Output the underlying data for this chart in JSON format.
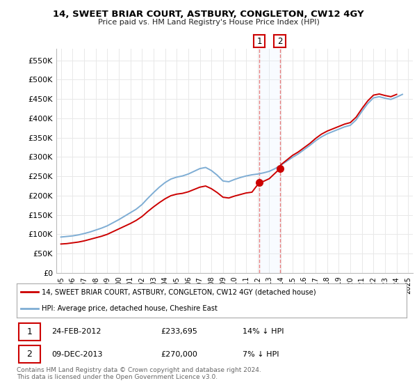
{
  "title": "14, SWEET BRIAR COURT, ASTBURY, CONGLETON, CW12 4GY",
  "subtitle": "Price paid vs. HM Land Registry's House Price Index (HPI)",
  "ylabel_ticks": [
    "£0",
    "£50K",
    "£100K",
    "£150K",
    "£200K",
    "£250K",
    "£300K",
    "£350K",
    "£400K",
    "£450K",
    "£500K",
    "£550K"
  ],
  "ytick_values": [
    0,
    50000,
    100000,
    150000,
    200000,
    250000,
    300000,
    350000,
    400000,
    450000,
    500000,
    550000
  ],
  "ylim": [
    0,
    580000
  ],
  "xlim_min": 1994.6,
  "xlim_max": 2025.4,
  "hpi_color": "#7eadd4",
  "price_color": "#cc0000",
  "marker_color": "#cc0000",
  "legend_label_price": "14, SWEET BRIAR COURT, ASTBURY, CONGLETON, CW12 4GY (detached house)",
  "legend_label_hpi": "HPI: Average price, detached house, Cheshire East",
  "transaction1_date": "24-FEB-2012",
  "transaction1_price": "£233,695",
  "transaction1_hpi": "14% ↓ HPI",
  "transaction2_date": "09-DEC-2013",
  "transaction2_price": "£270,000",
  "transaction2_hpi": "7% ↓ HPI",
  "t1_x": 2012.13,
  "t1_y": 233695,
  "t2_x": 2013.92,
  "t2_y": 270000,
  "footer": "Contains HM Land Registry data © Crown copyright and database right 2024.\nThis data is licensed under the Open Government Licence v3.0.",
  "background_color": "#ffffff",
  "grid_color": "#e8e8e8",
  "vline_color": "#e88080",
  "shade_color": "#ddeeff",
  "years_hpi": [
    1995.0,
    1995.5,
    1996.0,
    1996.5,
    1997.0,
    1997.5,
    1998.0,
    1998.5,
    1999.0,
    1999.5,
    2000.0,
    2000.5,
    2001.0,
    2001.5,
    2002.0,
    2002.5,
    2003.0,
    2003.5,
    2004.0,
    2004.5,
    2005.0,
    2005.5,
    2006.0,
    2006.5,
    2007.0,
    2007.5,
    2008.0,
    2008.5,
    2009.0,
    2009.5,
    2010.0,
    2010.5,
    2011.0,
    2011.5,
    2012.0,
    2012.5,
    2013.0,
    2013.5,
    2014.0,
    2014.5,
    2015.0,
    2015.5,
    2016.0,
    2016.5,
    2017.0,
    2017.5,
    2018.0,
    2018.5,
    2019.0,
    2019.5,
    2020.0,
    2020.5,
    2021.0,
    2021.5,
    2022.0,
    2022.5,
    2023.0,
    2023.5,
    2024.0,
    2024.5
  ],
  "hpi_values": [
    93000,
    94500,
    96000,
    98500,
    102000,
    106000,
    111000,
    116000,
    122000,
    130000,
    138000,
    147000,
    156000,
    165000,
    177000,
    193000,
    208000,
    222000,
    234000,
    243000,
    248000,
    251000,
    256000,
    263000,
    270000,
    273000,
    265000,
    253000,
    238000,
    236000,
    242000,
    247000,
    251000,
    254000,
    256000,
    259000,
    263000,
    270000,
    279000,
    289000,
    299000,
    308000,
    319000,
    330000,
    342000,
    352000,
    360000,
    366000,
    372000,
    378000,
    382000,
    396000,
    418000,
    438000,
    453000,
    456000,
    452000,
    449000,
    455000,
    462000
  ],
  "years_price": [
    1995.0,
    1995.5,
    1996.0,
    1996.5,
    1997.0,
    1997.5,
    1998.0,
    1998.5,
    1999.0,
    1999.5,
    2000.0,
    2000.5,
    2001.0,
    2001.5,
    2002.0,
    2002.5,
    2003.0,
    2003.5,
    2004.0,
    2004.5,
    2005.0,
    2005.5,
    2006.0,
    2006.5,
    2007.0,
    2007.5,
    2008.0,
    2008.5,
    2009.0,
    2009.5,
    2010.0,
    2010.5,
    2011.0,
    2011.5,
    2012.13,
    2012.5,
    2013.0,
    2013.92,
    2014.0,
    2014.5,
    2015.0,
    2015.5,
    2016.0,
    2016.5,
    2017.0,
    2017.5,
    2018.0,
    2018.5,
    2019.0,
    2019.5,
    2020.0,
    2020.5,
    2021.0,
    2021.5,
    2022.0,
    2022.5,
    2023.0,
    2023.5,
    2024.0
  ],
  "price_values": [
    75000,
    76000,
    78000,
    80000,
    83000,
    87000,
    91000,
    95000,
    100000,
    107000,
    114000,
    121000,
    128000,
    136000,
    146000,
    159000,
    171000,
    182000,
    192000,
    200000,
    204000,
    206000,
    210000,
    216000,
    222000,
    225000,
    218000,
    208000,
    196000,
    194000,
    199000,
    203000,
    207000,
    209000,
    233695,
    237000,
    244000,
    270000,
    280000,
    292000,
    304000,
    313000,
    324000,
    335000,
    348000,
    359000,
    367000,
    373000,
    379000,
    385000,
    389000,
    403000,
    425000,
    445000,
    460000,
    463000,
    459000,
    456000,
    462000
  ]
}
